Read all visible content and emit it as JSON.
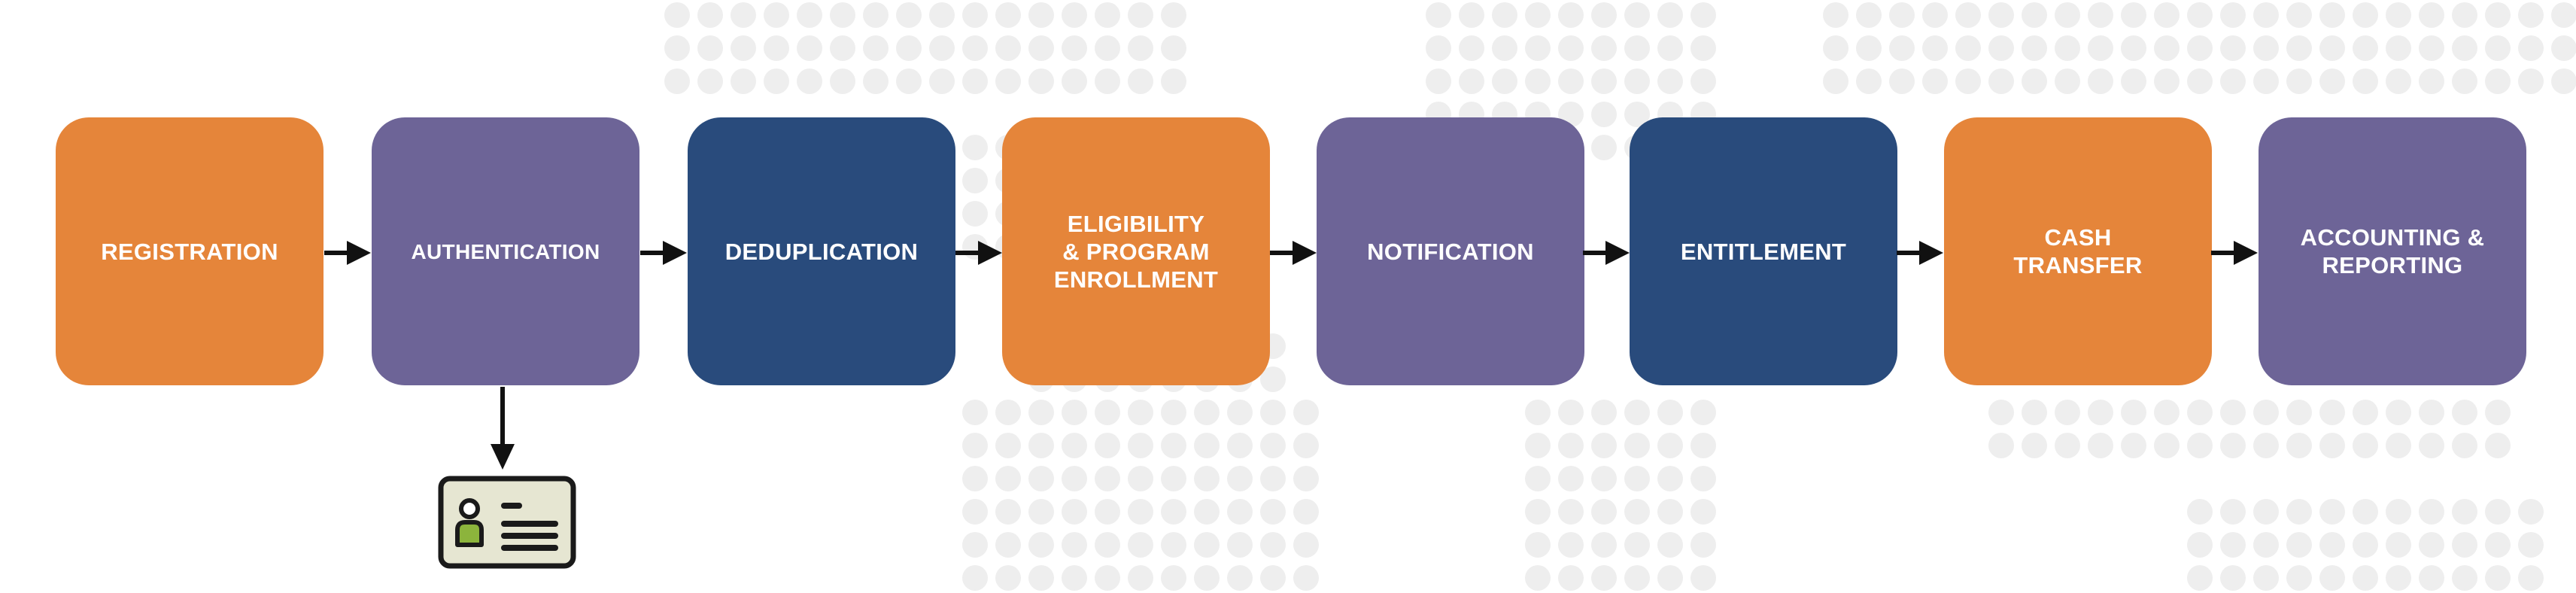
{
  "colors": {
    "orange": "#E5853A",
    "purple": "#6D6497",
    "navy": "#294B7C",
    "arrow": "#111111",
    "dots": "#EEEEEE",
    "card_fill": "#E6E6D2",
    "card_person": "#8CB43C"
  },
  "steps": [
    {
      "label": "REGISTRATION",
      "color": "#E5853A"
    },
    {
      "label": "AUTHENTICATION",
      "color": "#6D6497"
    },
    {
      "label": "DEDUPLICATION",
      "color": "#294B7C"
    },
    {
      "label": "ELIGIBILITY\n& PROGRAM\nENROLLMENT",
      "color": "#E5853A"
    },
    {
      "label": "NOTIFICATION",
      "color": "#6D6497"
    },
    {
      "label": "ENTITLEMENT",
      "color": "#294B7C"
    },
    {
      "label": "CASH\nTRANSFER",
      "color": "#E5853A"
    },
    {
      "label": "ACCOUNTING &\nREPORTING",
      "color": "#6D6497"
    }
  ],
  "icons": {
    "id_card": "id-card-icon",
    "arrow": "arrow-right-icon"
  }
}
